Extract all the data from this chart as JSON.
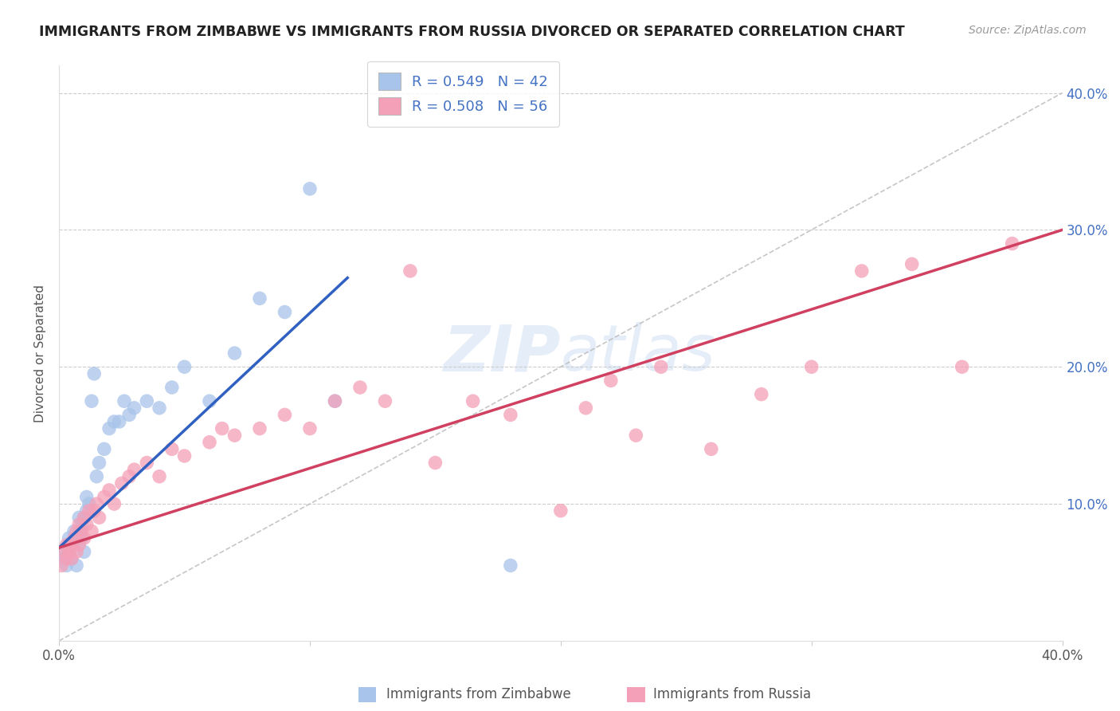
{
  "title": "IMMIGRANTS FROM ZIMBABWE VS IMMIGRANTS FROM RUSSIA DIVORCED OR SEPARATED CORRELATION CHART",
  "source": "Source: ZipAtlas.com",
  "ylabel": "Divorced or Separated",
  "xlim": [
    0.0,
    0.4
  ],
  "ylim": [
    0.0,
    0.42
  ],
  "xticks": [
    0.0,
    0.1,
    0.2,
    0.3,
    0.4
  ],
  "yticks": [
    0.1,
    0.2,
    0.3,
    0.4
  ],
  "ytick_labels_right": [
    "10.0%",
    "20.0%",
    "30.0%",
    "40.0%"
  ],
  "watermark": "ZIPatlas",
  "color_zimbabwe": "#a8c4ea",
  "color_russia": "#f4a0b8",
  "color_line_zimbabwe": "#3060c0",
  "color_line_russia": "#d04060",
  "color_diagonal": "#b8b8b8",
  "zimbabwe_x": [
    0.001,
    0.002,
    0.003,
    0.004,
    0.004,
    0.005,
    0.005,
    0.006,
    0.006,
    0.007,
    0.007,
    0.008,
    0.008,
    0.009,
    0.009,
    0.01,
    0.01,
    0.011,
    0.011,
    0.012,
    0.013,
    0.014,
    0.015,
    0.016,
    0.018,
    0.02,
    0.022,
    0.024,
    0.026,
    0.028,
    0.03,
    0.035,
    0.04,
    0.045,
    0.05,
    0.06,
    0.07,
    0.08,
    0.09,
    0.1,
    0.11,
    0.18
  ],
  "zimbabwe_y": [
    0.065,
    0.06,
    0.055,
    0.065,
    0.075,
    0.07,
    0.06,
    0.08,
    0.07,
    0.075,
    0.055,
    0.08,
    0.09,
    0.085,
    0.075,
    0.09,
    0.065,
    0.095,
    0.105,
    0.1,
    0.175,
    0.195,
    0.12,
    0.13,
    0.14,
    0.155,
    0.16,
    0.16,
    0.175,
    0.165,
    0.17,
    0.175,
    0.17,
    0.185,
    0.2,
    0.175,
    0.21,
    0.25,
    0.24,
    0.33,
    0.175,
    0.055
  ],
  "russia_x": [
    0.001,
    0.002,
    0.003,
    0.003,
    0.004,
    0.005,
    0.005,
    0.006,
    0.007,
    0.007,
    0.008,
    0.008,
    0.009,
    0.01,
    0.01,
    0.011,
    0.012,
    0.013,
    0.014,
    0.015,
    0.016,
    0.018,
    0.02,
    0.022,
    0.025,
    0.028,
    0.03,
    0.035,
    0.04,
    0.045,
    0.05,
    0.06,
    0.065,
    0.07,
    0.08,
    0.09,
    0.1,
    0.11,
    0.12,
    0.13,
    0.14,
    0.15,
    0.165,
    0.18,
    0.2,
    0.21,
    0.22,
    0.23,
    0.24,
    0.26,
    0.28,
    0.3,
    0.32,
    0.34,
    0.36,
    0.38
  ],
  "russia_y": [
    0.055,
    0.065,
    0.06,
    0.07,
    0.065,
    0.07,
    0.06,
    0.075,
    0.065,
    0.08,
    0.07,
    0.085,
    0.08,
    0.075,
    0.09,
    0.085,
    0.095,
    0.08,
    0.095,
    0.1,
    0.09,
    0.105,
    0.11,
    0.1,
    0.115,
    0.12,
    0.125,
    0.13,
    0.12,
    0.14,
    0.135,
    0.145,
    0.155,
    0.15,
    0.155,
    0.165,
    0.155,
    0.175,
    0.185,
    0.175,
    0.27,
    0.13,
    0.175,
    0.165,
    0.095,
    0.17,
    0.19,
    0.15,
    0.2,
    0.14,
    0.18,
    0.2,
    0.27,
    0.275,
    0.2,
    0.29
  ],
  "line_zim_x0": 0.0,
  "line_zim_y0": 0.068,
  "line_zim_x1": 0.115,
  "line_zim_y1": 0.265,
  "line_rus_x0": 0.0,
  "line_rus_y0": 0.068,
  "line_rus_x1": 0.4,
  "line_rus_y1": 0.3
}
